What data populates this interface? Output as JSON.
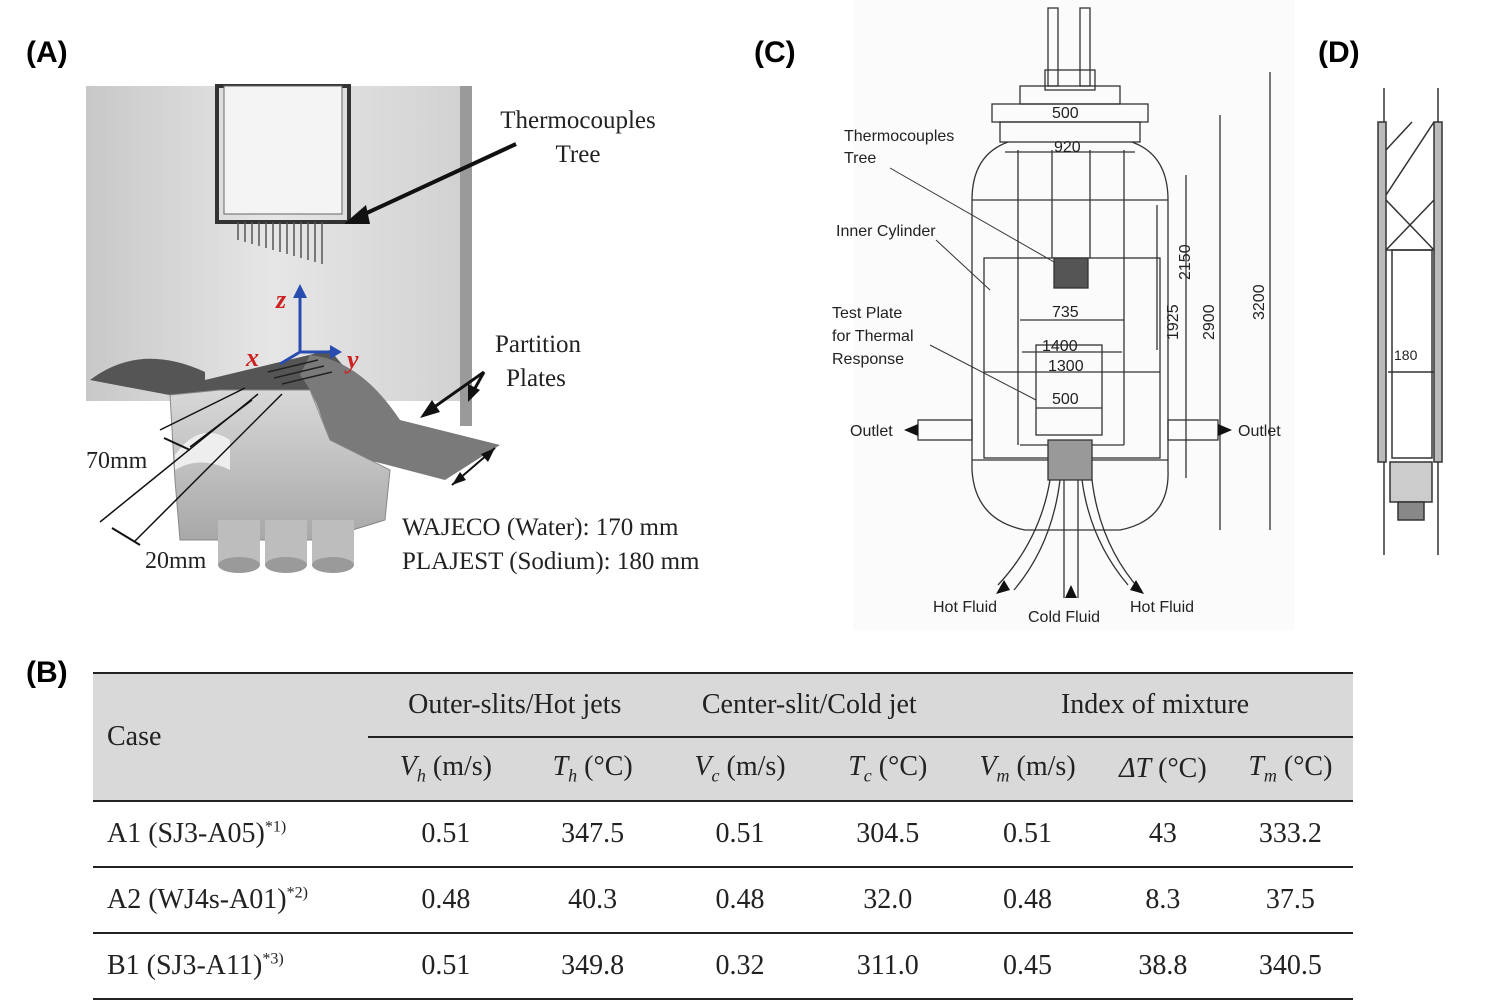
{
  "panels": {
    "a": {
      "label": "(A)",
      "thermocouples_line1": "Thermocouples",
      "thermocouples_line2": "Tree",
      "partition_line1": "Partition",
      "partition_line2": "Plates",
      "axis_z": "z",
      "axis_x": "x",
      "axis_y": "y",
      "dim_70": "70mm",
      "dim_20": "20mm",
      "wajeco": "WAJECO (Water): 170 mm",
      "plajest": "PLAJEST (Sodium): 180 mm"
    },
    "b": {
      "label": "(B)"
    },
    "c": {
      "label": "(C)",
      "tc_line1": "Thermocouples",
      "tc_line2": "Tree",
      "inner_cylinder": "Inner Cylinder",
      "test_plate_line1": "Test Plate",
      "test_plate_line2": "for Thermal",
      "test_plate_line3": "Response",
      "outlet_left": "Outlet",
      "outlet_right": "Outlet",
      "hot_fluid_left": "Hot Fluid",
      "cold_fluid": "Cold Fluid",
      "hot_fluid_right": "Hot Fluid",
      "dim_500_top": "500",
      "dim_920": "920",
      "dim_735": "735",
      "dim_1400": "1400",
      "dim_1300": "1300",
      "dim_500_low": "500",
      "dim_2150": "2150",
      "dim_1925": "1925",
      "dim_2900": "2900",
      "dim_3200": "3200"
    },
    "d": {
      "label": "(D)",
      "dim_180": "180"
    }
  },
  "table": {
    "case_header": "Case",
    "groups": [
      "Outer-slits/Hot jets",
      "Center-slit/Cold jet",
      "Index of mixture"
    ],
    "columns": [
      {
        "sym": "V",
        "sub": "h",
        "unit": " (m/s)"
      },
      {
        "sym": "T",
        "sub": "h",
        "unit": " (°C)"
      },
      {
        "sym": "V",
        "sub": "c",
        "unit": " (m/s)"
      },
      {
        "sym": "T",
        "sub": "c",
        "unit": " (°C)"
      },
      {
        "sym": "V",
        "sub": "m",
        "unit": " (m/s)"
      },
      {
        "sym": "ΔT",
        "sub": "",
        "unit": " (°C)"
      },
      {
        "sym": "T",
        "sub": "m",
        "unit": " (°C)"
      }
    ],
    "rows": [
      {
        "case": "A1 (SJ3-A05)",
        "note": "*1)",
        "values": [
          "0.51",
          "347.5",
          "0.51",
          "304.5",
          "0.51",
          "43",
          "333.2"
        ]
      },
      {
        "case": "A2 (WJ4s-A01)",
        "note": "*2)",
        "values": [
          "0.48",
          "40.3",
          "0.48",
          "32.0",
          "0.48",
          "8.3",
          "37.5"
        ]
      },
      {
        "case": "B1 (SJ3-A11)",
        "note": "*3)",
        "values": [
          "0.51",
          "349.8",
          "0.32",
          "311.0",
          "0.45",
          "38.8",
          "340.5"
        ]
      }
    ]
  },
  "colors": {
    "axis_red": "#cc2222",
    "axis_blue": "#2a4bb0",
    "shade": "#d9d9d9"
  }
}
